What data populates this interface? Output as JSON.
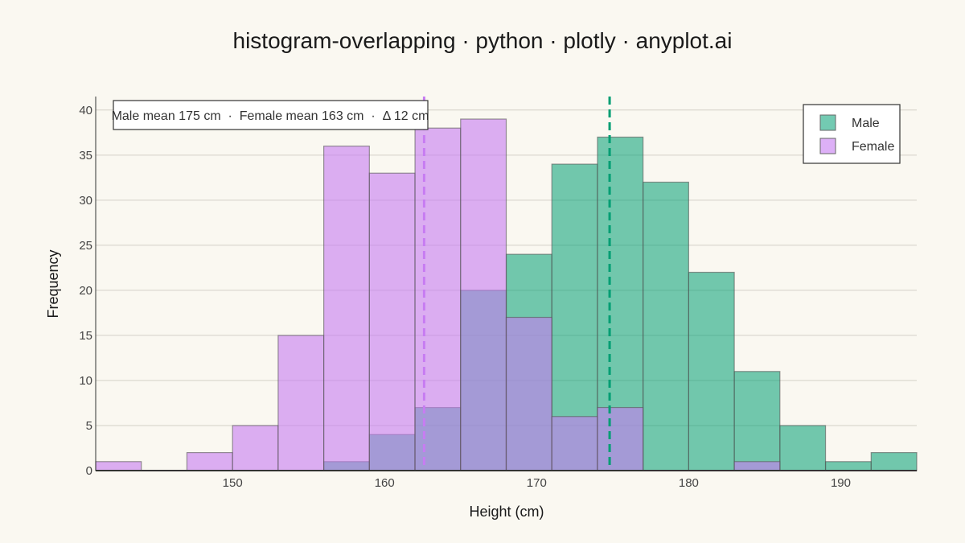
{
  "chart_data": {
    "type": "bar",
    "title": "histogram-overlapping · python · plotly · anyplot.ai",
    "xlabel": "Height (cm)",
    "ylabel": "Frequency",
    "xlim": [
      141,
      195
    ],
    "ylim": [
      0,
      41.5
    ],
    "x_ticks": [
      150,
      160,
      170,
      180,
      190
    ],
    "y_ticks": [
      0,
      5,
      10,
      15,
      20,
      25,
      30,
      35,
      40
    ],
    "grid": true,
    "legend_position": "top-right",
    "bins": [
      [
        141,
        144
      ],
      [
        144,
        147
      ],
      [
        147,
        150
      ],
      [
        150,
        153
      ],
      [
        153,
        156
      ],
      [
        156,
        159
      ],
      [
        159,
        162
      ],
      [
        162,
        165
      ],
      [
        165,
        168
      ],
      [
        168,
        171
      ],
      [
        171,
        174
      ],
      [
        174,
        177
      ],
      [
        177,
        180
      ],
      [
        180,
        183
      ],
      [
        183,
        186
      ],
      [
        186,
        189
      ],
      [
        189,
        192
      ],
      [
        192,
        195
      ]
    ],
    "series": [
      {
        "name": "Male",
        "color": "#009E73",
        "values": [
          0,
          0,
          0,
          0,
          0,
          1,
          4,
          7,
          20,
          24,
          34,
          37,
          32,
          22,
          11,
          5,
          1,
          2
        ],
        "mean": 174.8
      },
      {
        "name": "Female",
        "color": "#C77CF2",
        "values": [
          1,
          0,
          2,
          5,
          15,
          36,
          33,
          38,
          39,
          17,
          6,
          7,
          0,
          0,
          1,
          0,
          0,
          0
        ],
        "mean": 162.6
      }
    ],
    "annotation": "Male mean 175 cm  ·  Female mean 163 cm  ·  Δ 12 cm"
  }
}
